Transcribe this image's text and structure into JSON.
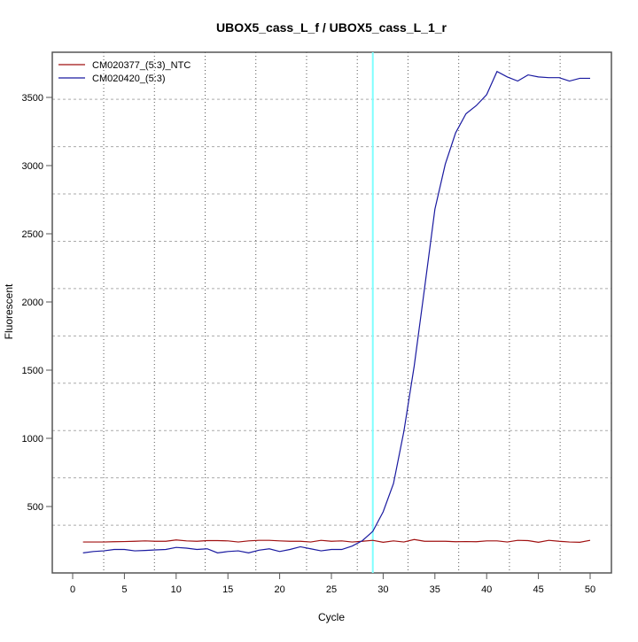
{
  "chart_data": {
    "type": "line",
    "title": "UBOX5_cass_L_f / UBOX5_cass_L_1_r",
    "xlabel": "Cycle",
    "ylabel": "Fluorescent",
    "xlim": [
      -2,
      52.5
    ],
    "ylim": [
      10,
      3835
    ],
    "xticks": [
      0,
      5,
      10,
      15,
      20,
      25,
      30,
      35,
      40,
      45,
      50
    ],
    "yticks": [
      500,
      1000,
      1500,
      2000,
      2500,
      3000,
      3500
    ],
    "grid": true,
    "grid_x": [
      3,
      7.9,
      12.8,
      17.7,
      22.6,
      27.5,
      32.4,
      37.3,
      42.2,
      47.1
    ],
    "grid_y": [
      363,
      710,
      1057,
      1404,
      1751,
      2098,
      2445,
      2792,
      3139,
      3486
    ],
    "threshold_cycle": 29,
    "threshold_color": "#7fffff",
    "legend_position": "top-left",
    "x": [
      1,
      2,
      3,
      4,
      5,
      6,
      7,
      8,
      9,
      10,
      11,
      12,
      13,
      14,
      15,
      16,
      17,
      18,
      19,
      20,
      21,
      22,
      23,
      24,
      25,
      26,
      27,
      28,
      29,
      30,
      31,
      32,
      33,
      34,
      35,
      36,
      37,
      38,
      39,
      40,
      41,
      42,
      43,
      44,
      45,
      46,
      47,
      48,
      49,
      50
    ],
    "series": [
      {
        "name": "CM020377_(5:3)_NTC",
        "color": "#a01010",
        "values": [
          240,
          240,
          240,
          242,
          243,
          245,
          248,
          245,
          245,
          255,
          248,
          245,
          250,
          250,
          248,
          240,
          248,
          252,
          252,
          248,
          245,
          245,
          240,
          252,
          245,
          248,
          240,
          245,
          252,
          238,
          248,
          240,
          258,
          245,
          245,
          245,
          242,
          243,
          242,
          248,
          248,
          240,
          252,
          250,
          238,
          252,
          245,
          240,
          238,
          252
        ]
      },
      {
        "name": "CM020420_(5:3)",
        "color": "#1a1aa0",
        "values": [
          160,
          170,
          175,
          185,
          185,
          175,
          178,
          182,
          185,
          200,
          195,
          185,
          190,
          160,
          170,
          175,
          160,
          180,
          190,
          170,
          185,
          205,
          190,
          175,
          185,
          185,
          210,
          250,
          318,
          461,
          669,
          1050,
          1530,
          2100,
          2680,
          3010,
          3240,
          3380,
          3440,
          3520,
          3690,
          3650,
          3620,
          3665,
          3650,
          3645,
          3645,
          3620,
          3640,
          3640
        ]
      }
    ]
  }
}
